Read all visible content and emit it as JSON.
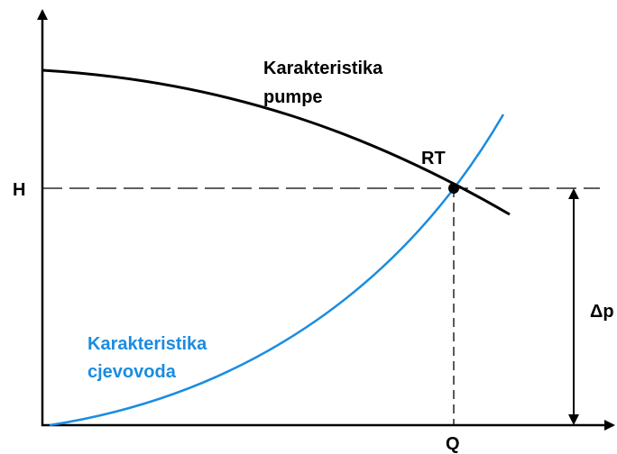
{
  "pump_curve": {
    "label_lines": [
      "Karakteristika",
      "pumpe"
    ]
  },
  "pipe_curve": {
    "label_lines": [
      "Karakteristika",
      "cjevovoda"
    ]
  },
  "operating_point": {
    "label": "RT"
  },
  "axes": {
    "y_label": "H",
    "x_label": "Q"
  },
  "pressure_difference": {
    "label": "Δp"
  }
}
